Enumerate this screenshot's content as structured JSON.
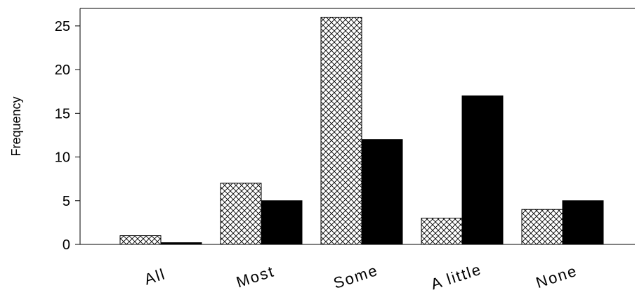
{
  "chart_data": {
    "type": "bar",
    "title": "",
    "xlabel": "",
    "ylabel": "Frequency",
    "categories": [
      "All",
      "Most",
      "Some",
      "A little",
      "None"
    ],
    "series": [
      {
        "pattern": "crosshatch",
        "values": [
          1,
          7,
          26,
          3,
          4
        ]
      },
      {
        "pattern": "solid-black",
        "values": [
          0.2,
          5,
          12,
          17,
          5
        ]
      }
    ],
    "ylim": [
      0,
      27
    ],
    "yticks": [
      0,
      5,
      10,
      15,
      20,
      25
    ],
    "grid": false,
    "legend": "none",
    "colors": {
      "axis": "#000000",
      "solid_fill": "#000000",
      "hatch_stroke": "#000000",
      "hatch_background": "#ffffff"
    }
  }
}
